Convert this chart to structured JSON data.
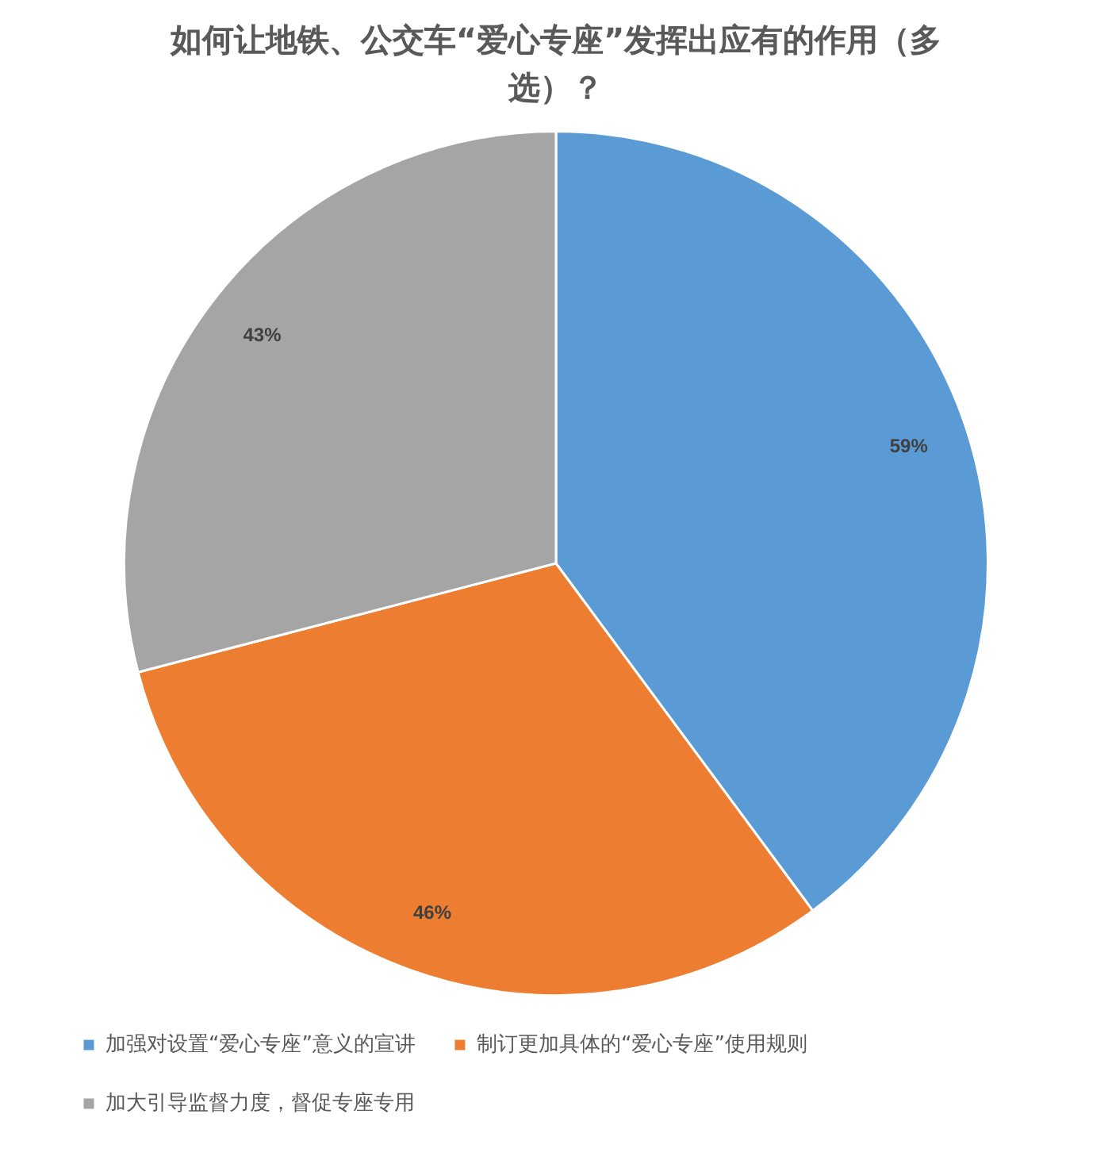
{
  "chart_data": {
    "type": "pie",
    "title": "如何让地铁、公交车“爱心专座”发挥出应有的作用（多选）？",
    "categories": [
      "加强对设置“爱心专座”意义的宣讲",
      "制订更加具体的“爱心专座”使用规则",
      "加大引导监督力度，督促专座专用"
    ],
    "values": [
      59,
      46,
      43
    ],
    "value_labels": [
      "59%",
      "46%",
      "43%"
    ],
    "colors": [
      "#5b9bd5",
      "#ed7d31",
      "#a5a5a5"
    ],
    "legend": "bottom"
  }
}
